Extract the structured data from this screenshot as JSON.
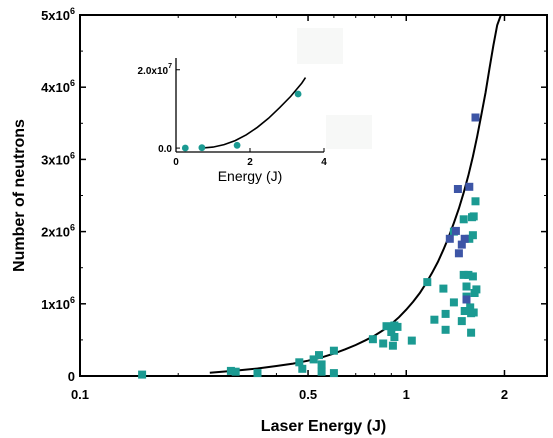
{
  "colors": {
    "teal": "#1b9a92",
    "blue": "#3d55a6",
    "curve": "#000000",
    "axis": "#000000"
  },
  "chart_data": [
    {
      "type": "scatter",
      "title": "",
      "xlabel": "Laser Energy (J)",
      "ylabel": "Number of neutrons",
      "xscale": "log",
      "xlim": [
        0.1,
        2.7
      ],
      "ylim": [
        0,
        5000000
      ],
      "xticks": [
        {
          "value": 0.1,
          "label": "0.1"
        },
        {
          "value": 0.5,
          "label": "0.5"
        },
        {
          "value": 1,
          "label": "1"
        },
        {
          "value": 2,
          "label": "2"
        }
      ],
      "yticks": [
        {
          "value": 0,
          "base": "0",
          "exp": ""
        },
        {
          "value": 1000000,
          "base": "1x10",
          "exp": "6"
        },
        {
          "value": 2000000,
          "base": "2x10",
          "exp": "6"
        },
        {
          "value": 3000000,
          "base": "3x10",
          "exp": "6"
        },
        {
          "value": 4000000,
          "base": "4x10",
          "exp": "6"
        },
        {
          "value": 5000000,
          "base": "5x10",
          "exp": "6"
        }
      ],
      "series": [
        {
          "color": "#1b9a92",
          "marker": "square",
          "points": [
            [
              0.155,
              20000
            ],
            [
              0.29,
              70000
            ],
            [
              0.3,
              60000
            ],
            [
              0.35,
              40000
            ],
            [
              0.47,
              190000
            ],
            [
              0.48,
              100000
            ],
            [
              0.52,
              230000
            ],
            [
              0.54,
              290000
            ],
            [
              0.55,
              60000
            ],
            [
              0.55,
              160000
            ],
            [
              0.6,
              350000
            ],
            [
              0.6,
              40000
            ],
            [
              0.79,
              510000
            ],
            [
              0.85,
              450000
            ],
            [
              0.87,
              690000
            ],
            [
              0.9,
              610000
            ],
            [
              0.91,
              420000
            ],
            [
              0.92,
              700000
            ],
            [
              0.92,
              540000
            ],
            [
              0.94,
              680000
            ],
            [
              1.04,
              490000
            ],
            [
              1.16,
              1300000
            ],
            [
              1.22,
              780000
            ],
            [
              1.3,
              1210000
            ],
            [
              1.32,
              860000
            ],
            [
              1.32,
              640000
            ],
            [
              1.4,
              1020000
            ],
            [
              1.4,
              2000000
            ],
            [
              1.48,
              760000
            ],
            [
              1.5,
              1400000
            ],
            [
              1.5,
              2170000
            ],
            [
              1.51,
              900000
            ],
            [
              1.53,
              1240000
            ],
            [
              1.53,
              1100000
            ],
            [
              1.55,
              1400000
            ],
            [
              1.56,
              1900000
            ],
            [
              1.57,
              950000
            ],
            [
              1.58,
              600000
            ],
            [
              1.58,
              870000
            ],
            [
              1.59,
              2200000
            ],
            [
              1.6,
              1950000
            ],
            [
              1.6,
              1380000
            ],
            [
              1.61,
              880000
            ],
            [
              1.61,
              2210000
            ],
            [
              1.62,
              1150000
            ],
            [
              1.63,
              2420000
            ],
            [
              1.64,
              1200000
            ]
          ]
        },
        {
          "color": "#3d55a6",
          "marker": "square",
          "points": [
            [
              1.36,
              1900000
            ],
            [
              1.42,
              2010000
            ],
            [
              1.44,
              2590000
            ],
            [
              1.45,
              1700000
            ],
            [
              1.48,
              1820000
            ],
            [
              1.51,
              1900000
            ],
            [
              1.53,
              1060000
            ],
            [
              1.56,
              2620000
            ],
            [
              1.63,
              3580000
            ]
          ]
        }
      ],
      "fit_curve": {
        "color": "#000000",
        "x": [
          0.25,
          0.3,
          0.35,
          0.4,
          0.45,
          0.5,
          0.55,
          0.6,
          0.65,
          0.7,
          0.75,
          0.8,
          0.85,
          0.9,
          0.95,
          1.0,
          1.05,
          1.1,
          1.15,
          1.2,
          1.25,
          1.3,
          1.35,
          1.4,
          1.45,
          1.5,
          1.55,
          1.6,
          1.65,
          1.7,
          1.75,
          1.8,
          1.85,
          1.9,
          1.95,
          2.0
        ],
        "y": [
          45000,
          75000,
          104000,
          138000,
          172000,
          212000,
          257000,
          310000,
          370000,
          430000,
          495000,
          560000,
          635000,
          720000,
          815000,
          920000,
          1030000,
          1150000,
          1285000,
          1430000,
          1580000,
          1750000,
          1930000,
          2120000,
          2320000,
          2540000,
          2780000,
          3040000,
          3320000,
          3620000,
          3930000,
          4260000,
          4580000,
          4860000,
          5000000,
          5080000
        ]
      }
    },
    {
      "type": "scatter",
      "title": "",
      "xlabel": "Energy (J)",
      "ylabel": "",
      "xlim": [
        0,
        4
      ],
      "ylim": [
        -1000000,
        23000000
      ],
      "xticks": [
        {
          "value": 0,
          "label": "0"
        },
        {
          "value": 2,
          "label": "2"
        },
        {
          "value": 4,
          "label": "4"
        }
      ],
      "yticks": [
        {
          "value": 0,
          "base": "0.0",
          "exp": ""
        },
        {
          "value": 20000000,
          "base": "2.0x10",
          "exp": "7"
        }
      ],
      "series": [
        {
          "color": "#1b9a92",
          "marker": "circle",
          "points": [
            [
              0.25,
              30000
            ],
            [
              0.7,
              100000
            ],
            [
              1.65,
              700000
            ],
            [
              3.3,
              13800000
            ]
          ]
        }
      ],
      "fit_curve": {
        "color": "#000000",
        "x": [
          0.7,
          1.0,
          1.3,
          1.6,
          1.9,
          2.2,
          2.5,
          2.8,
          3.1,
          3.4,
          3.5
        ],
        "y": [
          0,
          250000,
          900000,
          1900000,
          3400000,
          5300000,
          7600000,
          10300000,
          13200000,
          16600000,
          18000000
        ]
      }
    }
  ]
}
